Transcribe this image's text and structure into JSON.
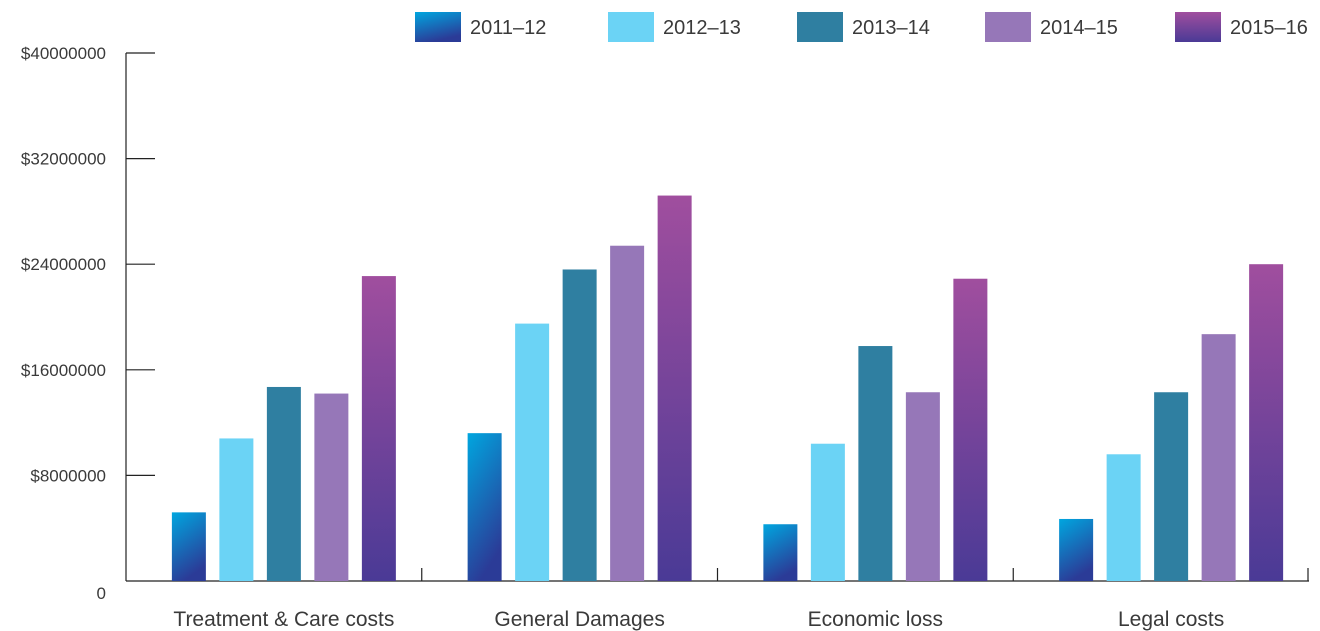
{
  "chart_data": {
    "type": "bar",
    "categories": [
      "Treatment & Care costs",
      "General Damages",
      "Economic loss",
      "Legal costs"
    ],
    "series": [
      {
        "name": "2011–12",
        "values": [
          5200000,
          11200000,
          4300000,
          4700000
        ]
      },
      {
        "name": "2012–13",
        "values": [
          10800000,
          19500000,
          10400000,
          9600000
        ]
      },
      {
        "name": "2013–14",
        "values": [
          14700000,
          23600000,
          17800000,
          14300000
        ]
      },
      {
        "name": "2014–15",
        "values": [
          14200000,
          25400000,
          14300000,
          18700000
        ]
      },
      {
        "name": "2015–16",
        "values": [
          23100000,
          29200000,
          22900000,
          24000000
        ]
      }
    ],
    "y_ticks": [
      0,
      8000000,
      16000000,
      24000000,
      32000000,
      40000000
    ],
    "y_tick_labels": [
      "0",
      "$8000000",
      "$16000000",
      "$24000000",
      "$32000000",
      "$40000000"
    ],
    "ylim": [
      0,
      40000000
    ],
    "title": "",
    "xlabel": "",
    "ylabel": "",
    "legend_position": "top-right",
    "grid": false,
    "colors": {
      "2011–12": [
        "#00a6df",
        "#2b3b97"
      ],
      "2012–13": [
        "#6bd3f5",
        "#6bd3f5"
      ],
      "2013–14": [
        "#2f7fa1",
        "#2f7fa1"
      ],
      "2014–15": [
        "#9677b8",
        "#9677b8"
      ],
      "2015–16": [
        "#a04e9e",
        "#4a3a96"
      ]
    }
  }
}
